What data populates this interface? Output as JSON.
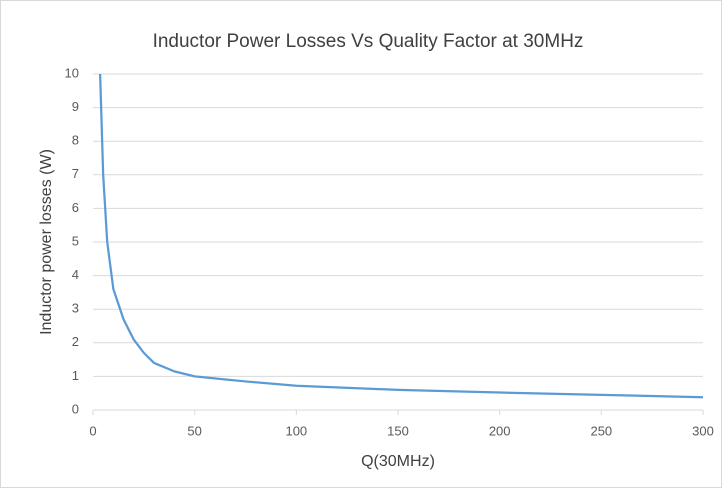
{
  "chart_data": {
    "type": "line",
    "title": "Inductor Power Losses Vs Quality Factor at 30MHz",
    "x_label": "Q(30MHz)",
    "y_label": "Inductor power losses (W)",
    "x": [
      3.5,
      5,
      7,
      10,
      15,
      20,
      25,
      30,
      40,
      50,
      75,
      100,
      150,
      200,
      250,
      300
    ],
    "series": [
      {
        "name": "Inductor power losses",
        "color": "#5b9bd5",
        "values": [
          10,
          7,
          5,
          3.6,
          2.7,
          2.1,
          1.7,
          1.4,
          1.15,
          1.0,
          0.85,
          0.72,
          0.6,
          0.52,
          0.45,
          0.38
        ]
      }
    ],
    "xlim": [
      0,
      300
    ],
    "xticks": [
      0,
      50,
      100,
      150,
      200,
      250,
      300
    ],
    "ylim": [
      0,
      10
    ],
    "yticks": [
      0,
      1,
      2,
      3,
      4,
      5,
      6,
      7,
      8,
      9,
      10
    ],
    "grid": true
  }
}
